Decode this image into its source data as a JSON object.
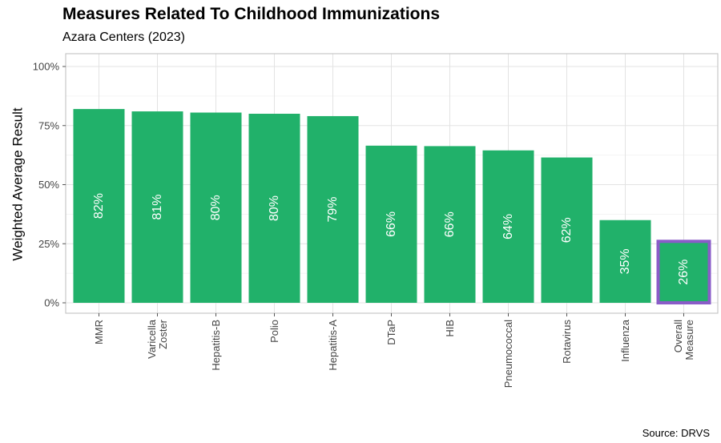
{
  "title": "Measures Related To Childhood Immunizations",
  "subtitle": "Azara Centers (2023)",
  "source": "Source: DRVS",
  "chart_data": {
    "type": "bar",
    "title": "Measures Related To Childhood Immunizations",
    "subtitle": "Azara Centers (2023)",
    "xlabel": "",
    "ylabel": "Weighted Average Result",
    "ylim": [
      0,
      1
    ],
    "y_ticks": [
      "0%",
      "25%",
      "50%",
      "75%",
      "100%"
    ],
    "y_tick_values": [
      0,
      0.25,
      0.5,
      0.75,
      1
    ],
    "categories": [
      [
        "MMR"
      ],
      [
        "Varicella",
        "Zoster"
      ],
      [
        "Hepatitis-B"
      ],
      [
        "Polio"
      ],
      [
        "Hepatitis-A"
      ],
      [
        "DTaP"
      ],
      [
        "HIB"
      ],
      [
        "Pneumococcal"
      ],
      [
        "Rotavirus"
      ],
      [
        "Influenza"
      ],
      [
        "Overall",
        "Measure"
      ]
    ],
    "values": [
      0.82,
      0.81,
      0.805,
      0.8,
      0.79,
      0.665,
      0.663,
      0.645,
      0.615,
      0.35,
      0.26
    ],
    "labels": [
      "82%",
      "81%",
      "80%",
      "80%",
      "79%",
      "66%",
      "66%",
      "64%",
      "62%",
      "35%",
      "26%"
    ],
    "highlight_index": 10,
    "bar_color": "#21B16A",
    "highlight_color": "#8A5CC8",
    "grid": true,
    "legend": "none"
  }
}
